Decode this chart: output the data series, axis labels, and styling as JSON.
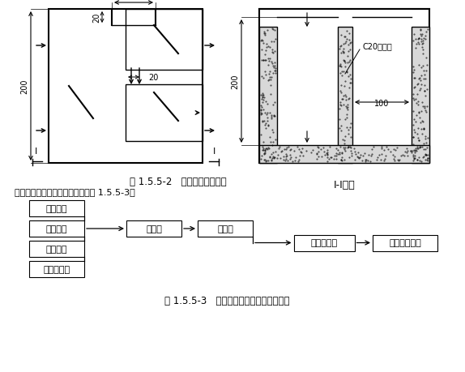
{
  "background_color": "#ffffff",
  "title1": "图 1.5.5-2   沉淀池结构示意图",
  "title2": "图 1.5.5-3   地面排水系统水流走向示意图",
  "intro_text": "施工地面排水系统的水流走向见图 1.5.5-3。",
  "section_label": "I-I剖面",
  "dim_100": "100",
  "dim_20_top": "20",
  "dim_20_mid": "20",
  "dim_200_left": "200",
  "dim_200_right": "200",
  "dim_100_right": "100",
  "label_C20": "C20混凝土",
  "font_family": "SimSun"
}
